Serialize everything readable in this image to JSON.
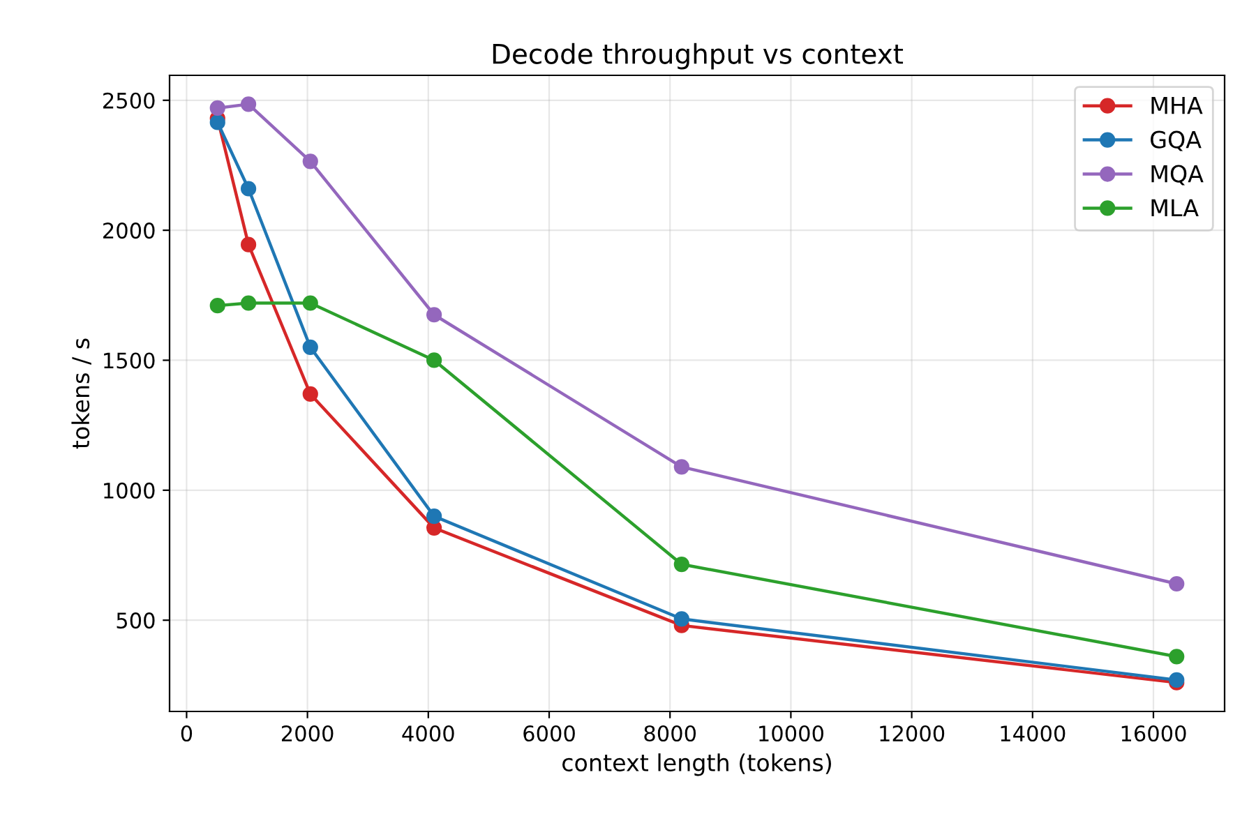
{
  "chart_data": {
    "type": "line",
    "title": "Decode throughput vs context",
    "xlabel": "context length (tokens)",
    "ylabel": "tokens / s",
    "x": [
      512,
      1024,
      2048,
      4096,
      8192,
      16384
    ],
    "series": [
      {
        "name": "MHA",
        "color": "#d62728",
        "values": [
          2430,
          1945,
          1370,
          855,
          480,
          260
        ]
      },
      {
        "name": "GQA",
        "color": "#1f77b4",
        "values": [
          2415,
          2160,
          1550,
          900,
          505,
          270
        ]
      },
      {
        "name": "MQA",
        "color": "#9467bd",
        "values": [
          2470,
          2485,
          2265,
          1675,
          1090,
          640
        ]
      },
      {
        "name": "MLA",
        "color": "#2ca02c",
        "values": [
          1710,
          1720,
          1720,
          1500,
          715,
          360
        ]
      }
    ],
    "xlim": [
      -282,
      17178
    ],
    "ylim": [
      149,
      2596
    ],
    "xticks": [
      0,
      2000,
      4000,
      6000,
      8000,
      10000,
      12000,
      14000,
      16000
    ],
    "yticks": [
      500,
      1000,
      1500,
      2000,
      2500
    ],
    "grid": true,
    "legend": "top right",
    "marker": "circle",
    "line_style": "solid"
  }
}
